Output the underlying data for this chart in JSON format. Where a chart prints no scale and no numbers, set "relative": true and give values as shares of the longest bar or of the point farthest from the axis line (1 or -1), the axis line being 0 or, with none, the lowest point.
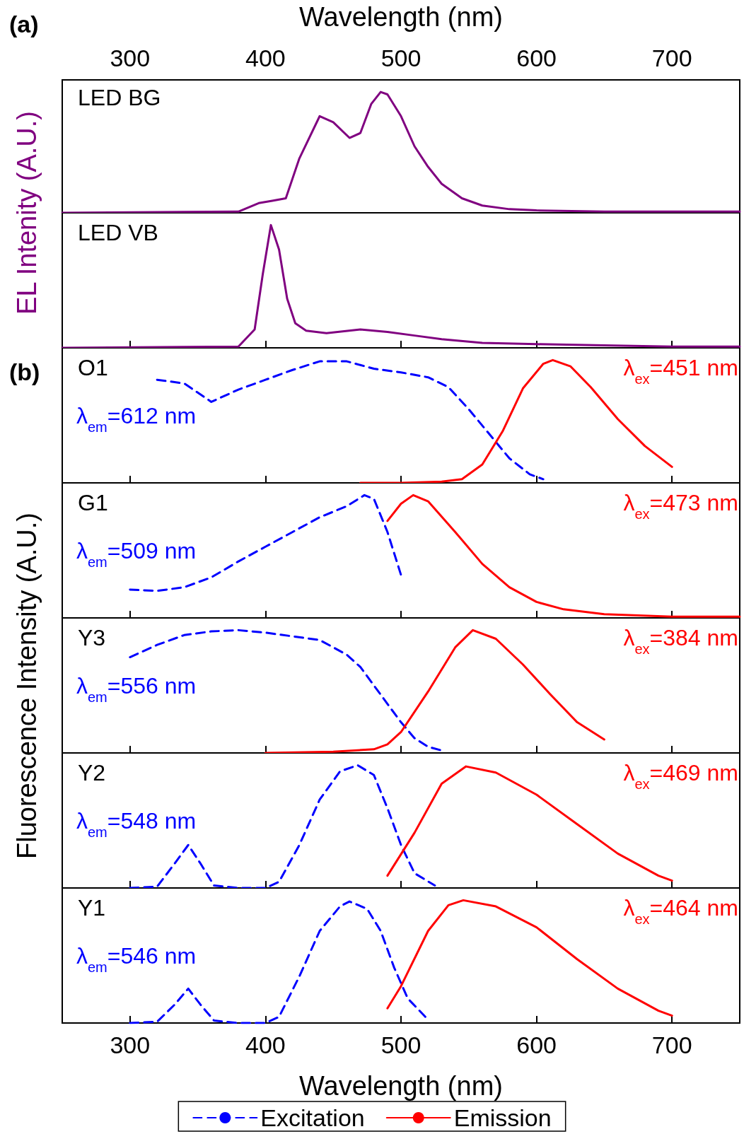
{
  "chart_data": [
    {
      "type": "line",
      "relative": true,
      "title": "(a)",
      "xlabel": "Wavelength (nm)",
      "xlim": [
        250,
        750
      ],
      "xticks": [
        300,
        400,
        500,
        600,
        700
      ],
      "tick_labels": "x",
      "ylabel": "EL Intenity (A.U.)",
      "annotations": [
        "LED BG"
      ],
      "series": [
        {
          "color": "#800080",
          "x": [
            250,
            380,
            395,
            405,
            415,
            425,
            440,
            450,
            462,
            470,
            478,
            485,
            490,
            500,
            510,
            520,
            530,
            545,
            560,
            580,
            600,
            650,
            750
          ],
          "values": [
            0,
            0.01,
            0.08,
            0.1,
            0.12,
            0.45,
            0.8,
            0.75,
            0.62,
            0.66,
            0.9,
            1,
            0.98,
            0.8,
            0.55,
            0.38,
            0.24,
            0.12,
            0.06,
            0.03,
            0.02,
            0.01,
            0.01
          ]
        }
      ]
    },
    {
      "type": "line",
      "relative": true,
      "xlim": [
        250,
        750
      ],
      "xticks": [
        300,
        400,
        500,
        600,
        700
      ],
      "tick_labels": false,
      "annotations": [
        "LED VB"
      ],
      "series": [
        {
          "color": "#800080",
          "x": [
            250,
            380,
            392,
            398,
            404,
            410,
            416,
            422,
            430,
            445,
            470,
            490,
            510,
            530,
            560,
            600,
            650,
            700,
            750
          ],
          "values": [
            0,
            0.01,
            0.15,
            0.6,
            1,
            0.8,
            0.4,
            0.2,
            0.14,
            0.12,
            0.15,
            0.13,
            0.1,
            0.07,
            0.04,
            0.03,
            0.02,
            0.01,
            0.01
          ]
        }
      ]
    },
    {
      "type": "line",
      "relative": true,
      "title": "(b)",
      "ylabel": "Fluorescence Intensity (A.U.)",
      "xlim": [
        250,
        750
      ],
      "xticks": [
        300,
        400,
        500,
        600,
        700
      ],
      "tick_labels": false,
      "annotations": [
        "O1",
        "λ$_{em}$=612 nm",
        "λ$_{ex}$=451 nm"
      ],
      "series": [
        {
          "color": "#0000ff",
          "line_style": "dashed",
          "x": [
            320,
            340,
            360,
            380,
            400,
            420,
            440,
            460,
            480,
            500,
            520,
            535,
            550,
            565,
            580,
            595,
            605
          ],
          "values": [
            0.84,
            0.81,
            0.66,
            0.76,
            0.84,
            0.92,
            0.99,
            0.99,
            0.93,
            0.9,
            0.86,
            0.78,
            0.6,
            0.4,
            0.2,
            0.07,
            0.03
          ]
        },
        {
          "color": "#ff0000",
          "line_style": "solid",
          "x": [
            470,
            500,
            530,
            545,
            560,
            575,
            590,
            605,
            612,
            625,
            640,
            660,
            680,
            700
          ],
          "values": [
            0,
            0,
            0.01,
            0.03,
            0.15,
            0.42,
            0.77,
            0.97,
            1,
            0.95,
            0.78,
            0.52,
            0.3,
            0.13
          ]
        }
      ]
    },
    {
      "type": "line",
      "relative": true,
      "xlim": [
        250,
        750
      ],
      "xticks": [
        300,
        400,
        500,
        600,
        700
      ],
      "tick_labels": false,
      "annotations": [
        "G1",
        "λ$_{em}$=509 nm",
        "λ$_{ex}$=473 nm"
      ],
      "series": [
        {
          "color": "#0000ff",
          "line_style": "dashed",
          "x": [
            300,
            320,
            340,
            360,
            380,
            400,
            420,
            440,
            460,
            473,
            480,
            490,
            500
          ],
          "values": [
            0.23,
            0.22,
            0.25,
            0.33,
            0.46,
            0.58,
            0.7,
            0.82,
            0.91,
            1,
            0.97,
            0.7,
            0.35
          ]
        },
        {
          "color": "#ff0000",
          "line_style": "solid",
          "x": [
            490,
            500,
            509,
            520,
            540,
            560,
            580,
            600,
            620,
            650,
            700,
            750
          ],
          "values": [
            0.79,
            0.93,
            1,
            0.95,
            0.7,
            0.44,
            0.25,
            0.13,
            0.07,
            0.03,
            0.01,
            0.01
          ]
        }
      ]
    },
    {
      "type": "line",
      "relative": true,
      "xlim": [
        250,
        750
      ],
      "xticks": [
        300,
        400,
        500,
        600,
        700
      ],
      "tick_labels": false,
      "annotations": [
        "Y3",
        "λ$_{em}$=556 nm",
        "λ$_{ex}$=384 nm"
      ],
      "series": [
        {
          "color": "#0000ff",
          "line_style": "dashed",
          "x": [
            300,
            320,
            340,
            360,
            380,
            400,
            420,
            440,
            460,
            470,
            480,
            490,
            500,
            510,
            520,
            530
          ],
          "values": [
            0.78,
            0.88,
            0.96,
            0.99,
            1,
            0.98,
            0.95,
            0.92,
            0.8,
            0.7,
            0.55,
            0.4,
            0.25,
            0.12,
            0.05,
            0.02
          ]
        },
        {
          "color": "#ff0000",
          "line_style": "solid",
          "x": [
            400,
            450,
            480,
            490,
            500,
            520,
            540,
            553,
            570,
            590,
            610,
            630,
            650
          ],
          "values": [
            0,
            0.01,
            0.03,
            0.07,
            0.17,
            0.5,
            0.86,
            1,
            0.93,
            0.72,
            0.48,
            0.25,
            0.11
          ]
        }
      ]
    },
    {
      "type": "line",
      "relative": true,
      "xlim": [
        250,
        750
      ],
      "xticks": [
        300,
        400,
        500,
        600,
        700
      ],
      "tick_labels": false,
      "annotations": [
        "Y2",
        "λ$_{em}$=548 nm",
        "λ$_{ex}$=469 nm"
      ],
      "series": [
        {
          "color": "#0000ff",
          "line_style": "dashed",
          "x": [
            300,
            320,
            333,
            343,
            352,
            362,
            380,
            400,
            410,
            425,
            440,
            455,
            468,
            480,
            490,
            500,
            510,
            525
          ],
          "values": [
            0,
            0.01,
            0.2,
            0.35,
            0.2,
            0.02,
            0,
            0,
            0.05,
            0.35,
            0.72,
            0.95,
            1,
            0.92,
            0.65,
            0.35,
            0.12,
            0.02
          ]
        },
        {
          "color": "#ff0000",
          "line_style": "solid",
          "x": [
            490,
            510,
            530,
            548,
            570,
            600,
            630,
            660,
            690,
            700
          ],
          "values": [
            0.1,
            0.45,
            0.85,
            0.99,
            0.94,
            0.76,
            0.52,
            0.28,
            0.1,
            0.06
          ]
        }
      ]
    },
    {
      "type": "line",
      "relative": true,
      "xlabel": "Wavelength (nm)",
      "xlim": [
        250,
        750
      ],
      "xticks": [
        300,
        400,
        500,
        600,
        700
      ],
      "tick_labels": "x",
      "legend": "bottom",
      "annotations": [
        "Y1",
        "λ$_{em}$=546 nm",
        "λ$_{ex}$=464 nm"
      ],
      "series": [
        {
          "name": "Excitation",
          "color": "#0000ff",
          "line_style": "dashed",
          "x": [
            300,
            320,
            333,
            343,
            352,
            362,
            380,
            400,
            410,
            425,
            440,
            455,
            462,
            475,
            485,
            495,
            505,
            518
          ],
          "values": [
            0,
            0.01,
            0.15,
            0.28,
            0.15,
            0.02,
            0,
            0,
            0.05,
            0.38,
            0.75,
            0.95,
            0.99,
            0.93,
            0.75,
            0.45,
            0.2,
            0.05
          ]
        },
        {
          "name": "Emission",
          "color": "#ff0000",
          "line_style": "solid",
          "x": [
            490,
            500,
            520,
            535,
            546,
            570,
            600,
            630,
            660,
            690,
            700
          ],
          "values": [
            0.12,
            0.3,
            0.75,
            0.96,
            1,
            0.95,
            0.78,
            0.52,
            0.28,
            0.1,
            0.06
          ]
        }
      ]
    }
  ]
}
